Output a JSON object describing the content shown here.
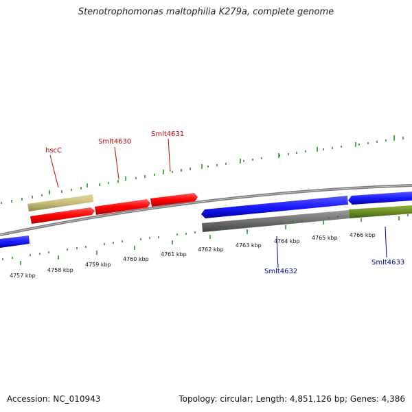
{
  "title": "Stenotrophomonas maltophilia K279a, complete genome",
  "footer": {
    "accession": "Accession: NC_010943",
    "summary": "Topology: circular; Length: 4,851,126 bp; Genes: 4,386"
  },
  "ticks": [
    "4757 kbp",
    "4758 kbp",
    "4759 kbp",
    "4760 kbp",
    "4761 kbp",
    "4762 kbp",
    "4763 kbp",
    "4764 kbp",
    "4765 kbp",
    "4766 kbp"
  ],
  "genes": {
    "hscC": "hscC",
    "smlt4630": "Smlt4630",
    "smlt4631": "Smlt4631",
    "smlt4632": "Smlt4632",
    "smlt4633": "Smlt4633"
  },
  "colors": {
    "forward_cds": "#ff0000",
    "reverse_cds": "#1a1aff",
    "tan_feature": "#c8be78",
    "grey_feature": "#707070",
    "olive_feature": "#6b8e23",
    "backbone": "#8c8c8c",
    "ticks": "#1a8a1a",
    "label_red": "#cc0000",
    "label_blue": "#000099"
  }
}
